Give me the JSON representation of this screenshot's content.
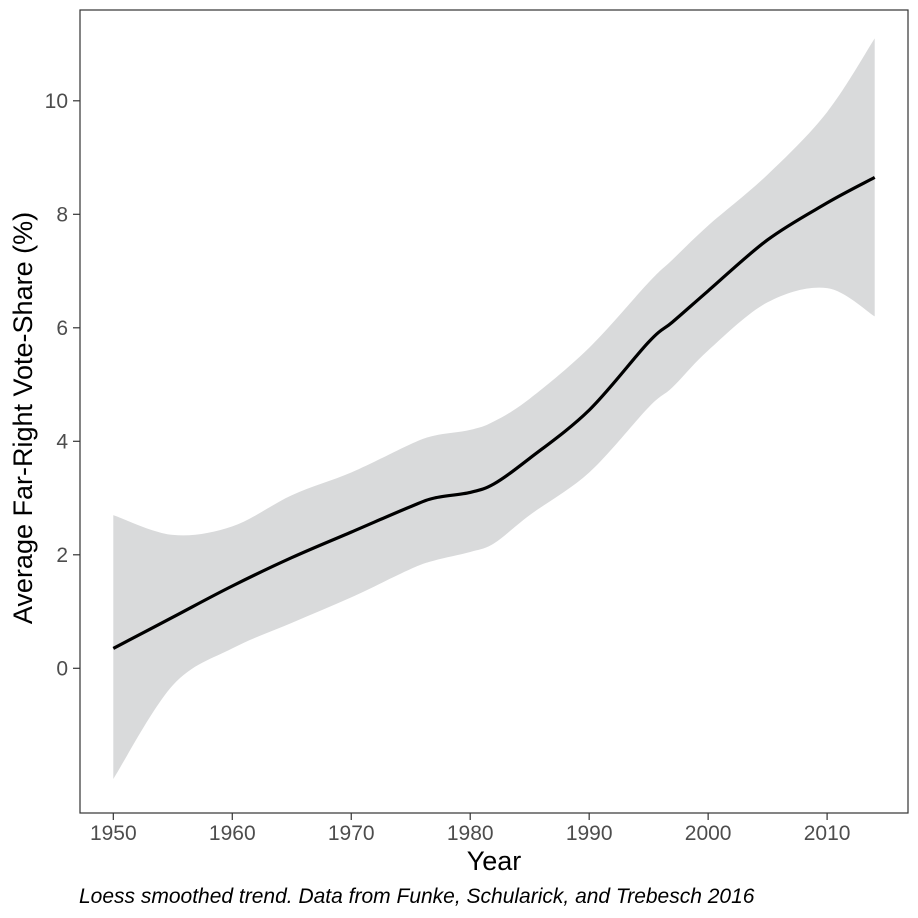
{
  "chart_data": {
    "type": "line",
    "title": "",
    "xlabel": "Year",
    "ylabel": "Average Far-Right Vote-Share (%)",
    "caption": "Loess smoothed trend. Data from Funke, Schularick, and Trebesch 2016",
    "xlim": [
      1947.2,
      2016.8
    ],
    "ylim": [
      -2.55,
      11.6
    ],
    "xticks": [
      1950,
      1960,
      1970,
      1980,
      1990,
      2000,
      2010
    ],
    "yticks": [
      0,
      2,
      4,
      6,
      8,
      10
    ],
    "grid": false,
    "legend": "none",
    "series": [
      {
        "x": [
          1950,
          1955,
          1960,
          1965,
          1970,
          1975,
          1977,
          1980,
          1982,
          1985,
          1990,
          1995,
          1997,
          2000,
          2005,
          2010,
          2014
        ],
        "y": [
          0.35,
          0.9,
          1.45,
          1.95,
          2.4,
          2.85,
          3.0,
          3.1,
          3.25,
          3.7,
          4.55,
          5.75,
          6.1,
          6.65,
          7.55,
          8.2,
          8.65
        ],
        "lower": [
          -1.95,
          -0.3,
          0.35,
          0.8,
          1.25,
          1.75,
          1.9,
          2.05,
          2.2,
          2.7,
          3.45,
          4.6,
          4.95,
          5.6,
          6.45,
          6.7,
          6.2
        ],
        "upper": [
          2.7,
          2.35,
          2.5,
          3.05,
          3.45,
          3.95,
          4.1,
          4.2,
          4.35,
          4.75,
          5.65,
          6.8,
          7.2,
          7.8,
          8.7,
          9.8,
          11.1
        ]
      }
    ],
    "colors": {
      "line": "#000000",
      "band": "#d9dadb",
      "axis": "#333333",
      "tick_text": "#4d4d4d"
    }
  }
}
